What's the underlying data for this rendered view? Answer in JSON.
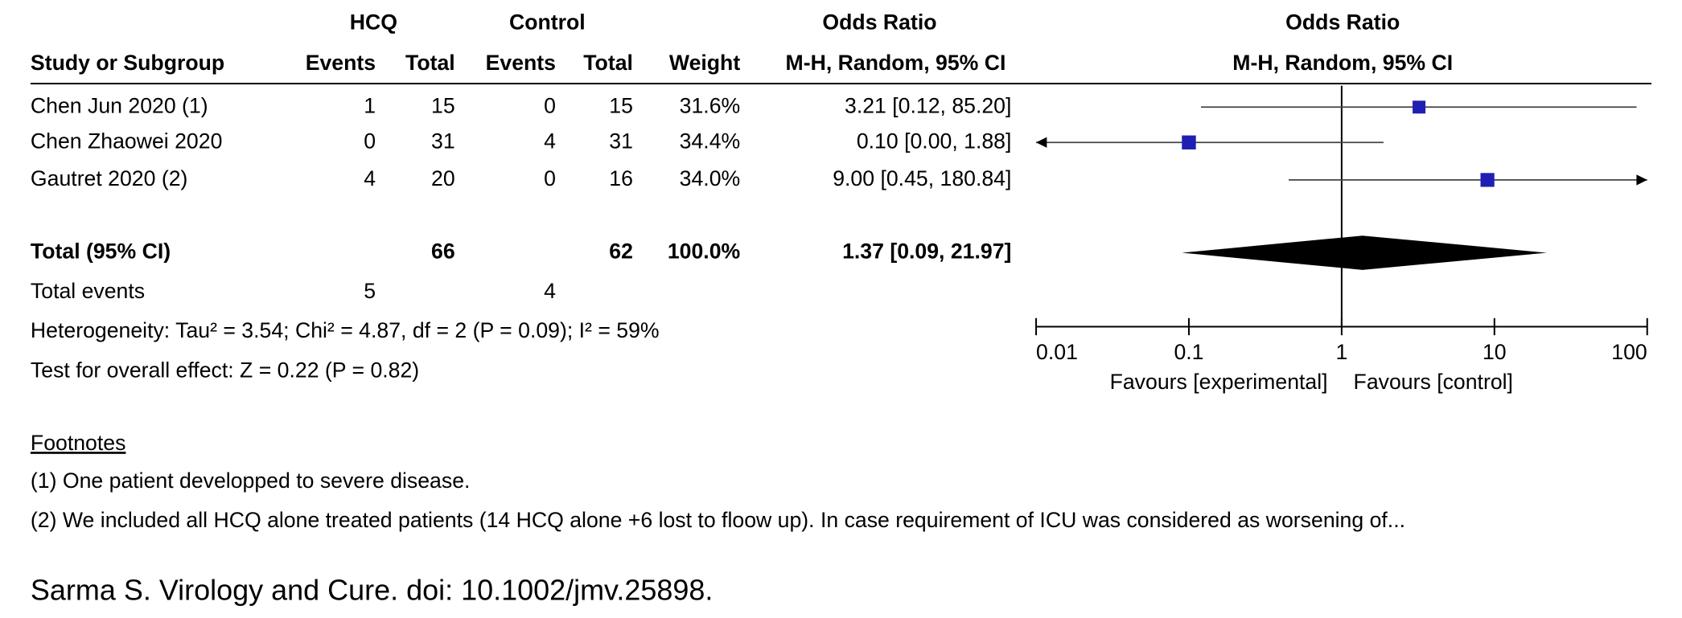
{
  "chart_data": {
    "type": "forest",
    "group_headers": {
      "hcq": "HCQ",
      "control": "Control",
      "table_or": "Odds Ratio",
      "plot_or": "Odds Ratio"
    },
    "column_headers": {
      "study": "Study or Subgroup",
      "hcq_events": "Events",
      "hcq_total": "Total",
      "ctrl_events": "Events",
      "ctrl_total": "Total",
      "weight": "Weight",
      "table_method": "M-H, Random, 95% CI",
      "plot_method": "M-H, Random, 95% CI"
    },
    "rows": [
      {
        "study": "Chen Jun 2020 (1)",
        "hcq_events": 1,
        "hcq_total": 15,
        "ctrl_events": 0,
        "ctrl_total": 15,
        "weight": 31.6,
        "weight_label": "31.6%",
        "or": 3.21,
        "ci_low": 0.12,
        "ci_high": 85.2,
        "effect_label": "3.21 [0.12, 85.20]"
      },
      {
        "study": "Chen Zhaowei 2020",
        "hcq_events": 0,
        "hcq_total": 31,
        "ctrl_events": 4,
        "ctrl_total": 31,
        "weight": 34.4,
        "weight_label": "34.4%",
        "or": 0.1,
        "ci_low": 0,
        "ci_high": 1.88,
        "effect_label": "0.10 [0.00, 1.88]"
      },
      {
        "study": "Gautret 2020 (2)",
        "hcq_events": 4,
        "hcq_total": 20,
        "ctrl_events": 0,
        "ctrl_total": 16,
        "weight": 34.0,
        "weight_label": "34.0%",
        "or": 9.0,
        "ci_low": 0.45,
        "ci_high": 180.84,
        "effect_label": "9.00 [0.45, 180.84]"
      }
    ],
    "total": {
      "label": "Total (95% CI)",
      "hcq_total": 66,
      "ctrl_total": 62,
      "weight": 100,
      "weight_label": "100.0%",
      "or": 1.37,
      "ci_low": 0.09,
      "ci_high": 21.97,
      "effect_label": "1.37 [0.09, 21.97]"
    },
    "total_events": {
      "label": "Total events",
      "hcq": 5,
      "ctrl": 4
    },
    "heterogeneity": "Heterogeneity: Tau² = 3.54; Chi² = 4.87, df = 2 (P = 0.09); I² = 59%",
    "overall_effect": "Test for overall effect: Z = 0.22 (P = 0.82)",
    "log_scale": true,
    "xlim": [
      0.01,
      100
    ],
    "xticks": [
      0.01,
      0.1,
      1,
      10,
      100
    ],
    "null_line": 1,
    "favours_left": "Favours [experimental]",
    "favours_right": "Favours [control]",
    "square_color": "#1f1fb4",
    "footnotes": {
      "title": "Footnotes",
      "items": [
        "(1) One patient developped to severe disease.",
        "(2) We included all HCQ alone treated patients (14 HCQ alone +6 lost to floow up). In case requirement of ICU was considered as worsening of..."
      ]
    },
    "citation": "Sarma S. Virology and Cure.  doi: 10.1002/jmv.25898."
  }
}
